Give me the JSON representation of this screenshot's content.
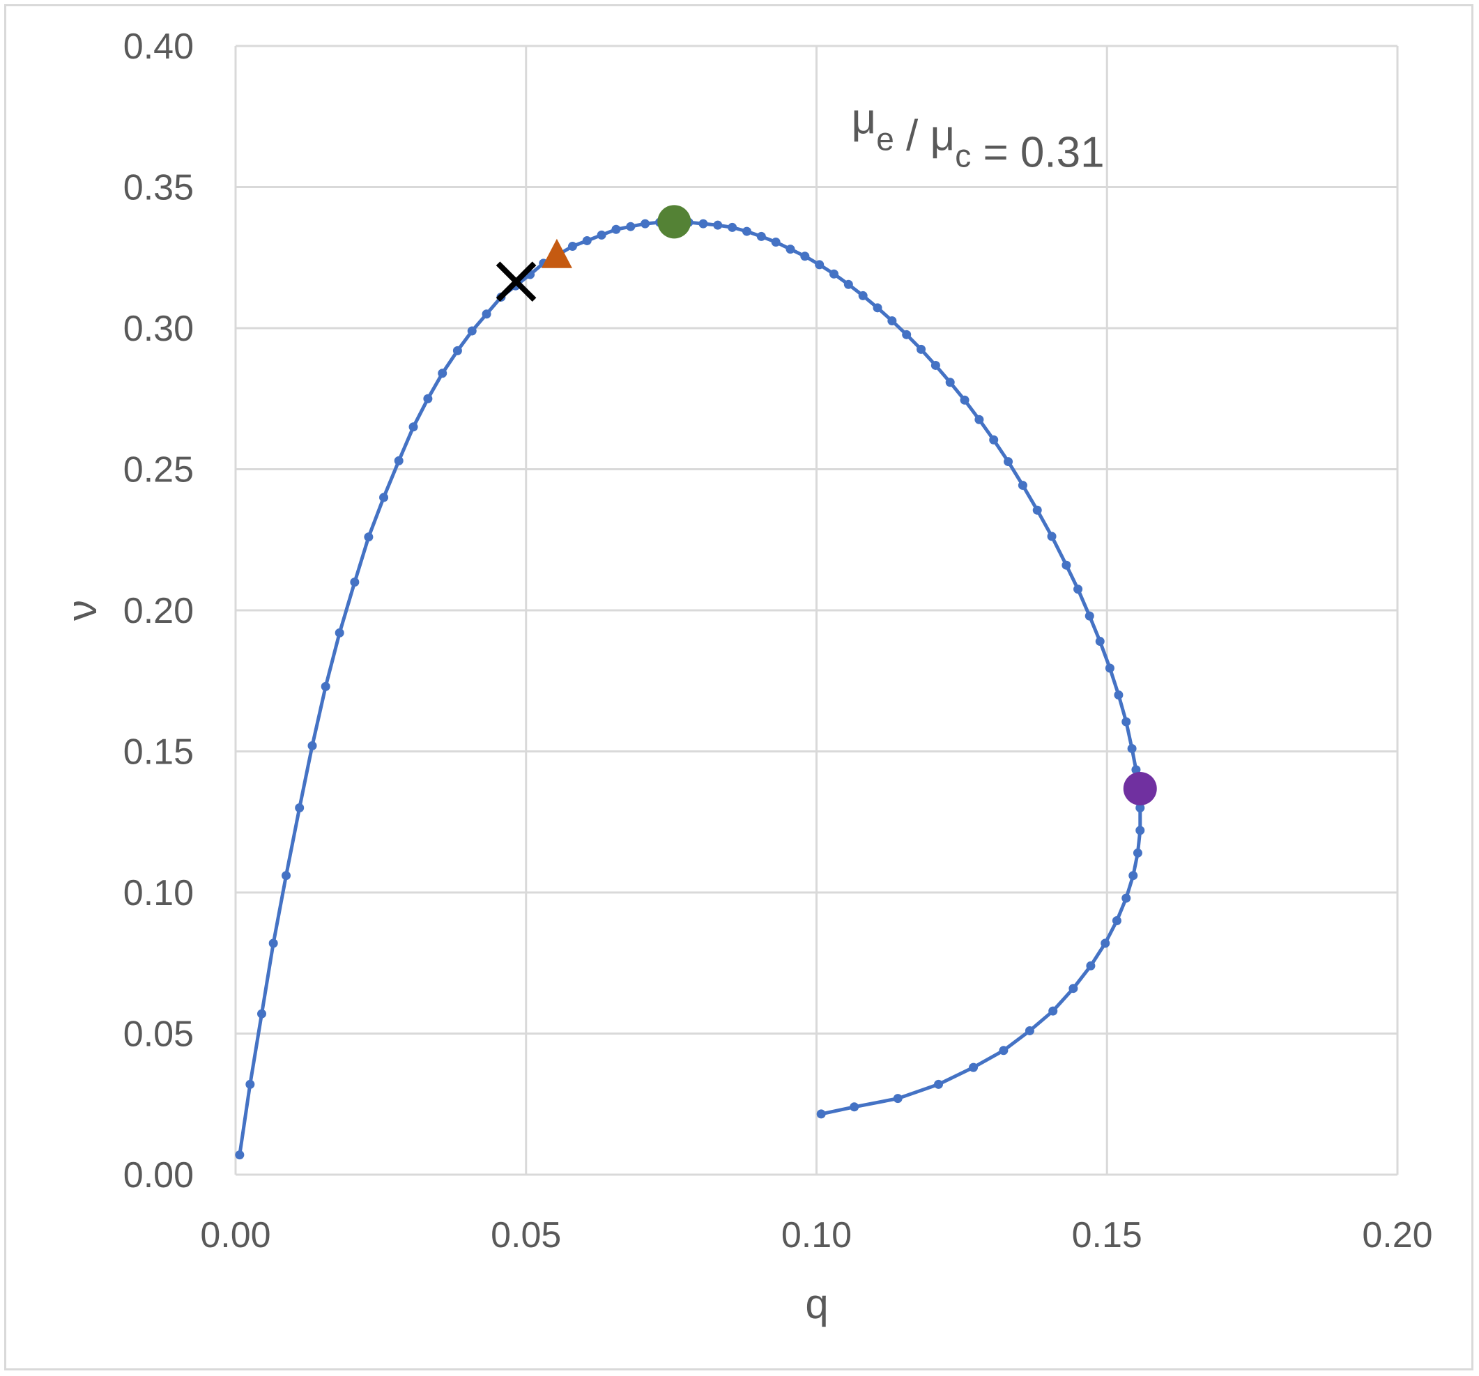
{
  "chart_data": {
    "type": "scatter",
    "xlabel": "q",
    "ylabel": "ν",
    "xlim": [
      0,
      0.2
    ],
    "ylim": [
      0,
      0.4
    ],
    "x_ticks": [
      "0.00",
      "0.05",
      "0.10",
      "0.15",
      "0.20"
    ],
    "y_ticks": [
      "0.00",
      "0.05",
      "0.10",
      "0.15",
      "0.20",
      "0.25",
      "0.30",
      "0.35",
      "0.40"
    ],
    "grid": true,
    "annotation": {
      "parts": [
        {
          "text": "μ",
          "sub": "e"
        },
        {
          "text": " / μ",
          "sub": "c"
        },
        {
          "text": " = 0.31",
          "sub": ""
        }
      ],
      "x": 0.106,
      "y": 0.369
    },
    "series": [
      {
        "color": "#4472c4",
        "marker": "dot",
        "line": true,
        "points": [
          [
            0.0007,
            0.007
          ],
          [
            0.0025,
            0.032
          ],
          [
            0.0045,
            0.057
          ],
          [
            0.0065,
            0.082
          ],
          [
            0.0087,
            0.106
          ],
          [
            0.011,
            0.13
          ],
          [
            0.0132,
            0.152
          ],
          [
            0.0155,
            0.173
          ],
          [
            0.0179,
            0.192
          ],
          [
            0.0205,
            0.21
          ],
          [
            0.0229,
            0.226
          ],
          [
            0.0255,
            0.24
          ],
          [
            0.0281,
            0.253
          ],
          [
            0.0306,
            0.265
          ],
          [
            0.0331,
            0.275
          ],
          [
            0.0356,
            0.284
          ],
          [
            0.0382,
            0.292
          ],
          [
            0.0407,
            0.299
          ],
          [
            0.0432,
            0.305
          ],
          [
            0.0457,
            0.311
          ],
          [
            0.0482,
            0.315
          ],
          [
            0.0507,
            0.319
          ],
          [
            0.053,
            0.323
          ],
          [
            0.0555,
            0.326
          ],
          [
            0.058,
            0.329
          ],
          [
            0.0605,
            0.331
          ],
          [
            0.063,
            0.333
          ],
          [
            0.0655,
            0.335
          ],
          [
            0.068,
            0.336
          ],
          [
            0.0705,
            0.337
          ],
          [
            0.073,
            0.3375
          ],
          [
            0.0755,
            0.3377
          ],
          [
            0.078,
            0.3375
          ],
          [
            0.0805,
            0.337
          ],
          [
            0.083,
            0.3365
          ],
          [
            0.0855,
            0.3357
          ],
          [
            0.088,
            0.3343
          ],
          [
            0.0905,
            0.3325
          ],
          [
            0.093,
            0.3305
          ],
          [
            0.0955,
            0.328
          ],
          [
            0.098,
            0.3255
          ],
          [
            0.1005,
            0.3225
          ],
          [
            0.103,
            0.3192
          ],
          [
            0.1055,
            0.3155
          ],
          [
            0.108,
            0.3115
          ],
          [
            0.1105,
            0.3072
          ],
          [
            0.113,
            0.3026
          ],
          [
            0.1155,
            0.2977
          ],
          [
            0.118,
            0.2925
          ],
          [
            0.1205,
            0.2868
          ],
          [
            0.123,
            0.2808
          ],
          [
            0.1255,
            0.2745
          ],
          [
            0.128,
            0.2676
          ],
          [
            0.1305,
            0.2604
          ],
          [
            0.133,
            0.2527
          ],
          [
            0.1355,
            0.2443
          ],
          [
            0.138,
            0.2355
          ],
          [
            0.1405,
            0.2262
          ],
          [
            0.143,
            0.216
          ],
          [
            0.145,
            0.2075
          ],
          [
            0.147,
            0.198
          ],
          [
            0.1488,
            0.189
          ],
          [
            0.1505,
            0.1795
          ],
          [
            0.152,
            0.17
          ],
          [
            0.1533,
            0.1605
          ],
          [
            0.1543,
            0.151
          ],
          [
            0.155,
            0.1435
          ],
          [
            0.1555,
            0.137
          ],
          [
            0.1557,
            0.13
          ],
          [
            0.1557,
            0.122
          ],
          [
            0.1553,
            0.114
          ],
          [
            0.1545,
            0.106
          ],
          [
            0.1533,
            0.098
          ],
          [
            0.1517,
            0.09
          ],
          [
            0.1497,
            0.082
          ],
          [
            0.1472,
            0.074
          ],
          [
            0.1442,
            0.066
          ],
          [
            0.1407,
            0.058
          ],
          [
            0.1367,
            0.051
          ],
          [
            0.1322,
            0.044
          ],
          [
            0.127,
            0.038
          ],
          [
            0.121,
            0.032
          ],
          [
            0.114,
            0.027
          ],
          [
            0.1065,
            0.024
          ],
          [
            0.1008,
            0.0215
          ]
        ]
      }
    ],
    "markers": [
      {
        "shape": "x",
        "color": "#000000",
        "x": 0.0483,
        "y": 0.3165
      },
      {
        "shape": "triangle",
        "color": "#c55a11",
        "x": 0.0553,
        "y": 0.3255
      },
      {
        "shape": "circle",
        "color": "#548235",
        "x": 0.0755,
        "y": 0.3377
      },
      {
        "shape": "circle",
        "color": "#7030a0",
        "x": 0.1557,
        "y": 0.1368
      }
    ]
  }
}
